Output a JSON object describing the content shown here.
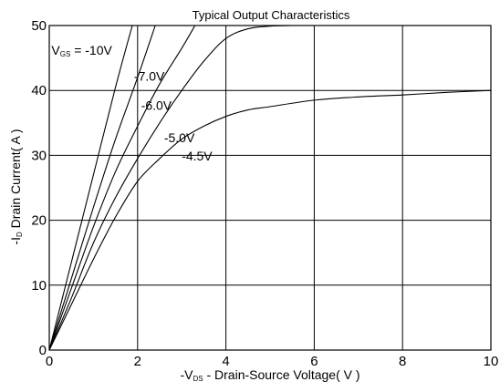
{
  "chart_data": {
    "type": "line",
    "title": "Typical Output Characteristics",
    "xlabel": {
      "prefix": "-V",
      "sub": "DS",
      "suffix": " - Drain-Source Voltage( V )"
    },
    "ylabel": {
      "prefix": "-I",
      "sub": "D",
      "suffix": " Drain Current( A )"
    },
    "xlim": [
      0,
      10
    ],
    "ylim": [
      0,
      50
    ],
    "xticks": [
      "0",
      "2",
      "4",
      "6",
      "8",
      "10"
    ],
    "yticks": [
      "0",
      "10",
      "20",
      "30",
      "40",
      "50"
    ],
    "grid": true,
    "series": [
      {
        "name": "-10V",
        "label_parts": {
          "prefix": "V",
          "sub": "GS",
          "suffix": " = -10V"
        },
        "points": [
          [
            0,
            0
          ],
          [
            0.5,
            13.5
          ],
          [
            1.0,
            27.0
          ],
          [
            1.5,
            40.5
          ],
          [
            1.88,
            50
          ]
        ]
      },
      {
        "name": "-7.0V",
        "points": [
          [
            0,
            0
          ],
          [
            0.5,
            11.0
          ],
          [
            1.0,
            22.0
          ],
          [
            1.5,
            32.5
          ],
          [
            2.0,
            42.0
          ],
          [
            2.4,
            50
          ]
        ]
      },
      {
        "name": "-6.0V",
        "points": [
          [
            0,
            0
          ],
          [
            0.5,
            9.5
          ],
          [
            1.0,
            19.0
          ],
          [
            1.5,
            27.5
          ],
          [
            2.0,
            34.5
          ],
          [
            2.5,
            41.0
          ],
          [
            3.0,
            46.5
          ],
          [
            3.3,
            50
          ]
        ]
      },
      {
        "name": "-5.0V",
        "points": [
          [
            0,
            0
          ],
          [
            0.5,
            8.0
          ],
          [
            1.0,
            16.5
          ],
          [
            1.5,
            23.5
          ],
          [
            2.0,
            29.5
          ],
          [
            2.5,
            35.0
          ],
          [
            3.0,
            40.0
          ],
          [
            3.5,
            44.5
          ],
          [
            4.0,
            48.0
          ],
          [
            4.5,
            49.5
          ],
          [
            5.0,
            49.9
          ],
          [
            5.5,
            50
          ]
        ]
      },
      {
        "name": "-4.5V",
        "points": [
          [
            0,
            0
          ],
          [
            0.5,
            7.0
          ],
          [
            1.0,
            14.0
          ],
          [
            1.5,
            20.5
          ],
          [
            2.0,
            26.0
          ],
          [
            2.5,
            29.5
          ],
          [
            3.0,
            32.5
          ],
          [
            3.5,
            34.5
          ],
          [
            4.0,
            36.0
          ],
          [
            4.5,
            37.0
          ],
          [
            5.0,
            37.5
          ],
          [
            6.0,
            38.5
          ],
          [
            7.0,
            39.0
          ],
          [
            8.0,
            39.3
          ],
          [
            9.0,
            39.7
          ],
          [
            10.0,
            40.0
          ]
        ]
      }
    ],
    "curve_label_anchors": [
      [
        0.05,
        45.5
      ],
      [
        1.92,
        41.5
      ],
      [
        2.08,
        37.0
      ],
      [
        2.6,
        32.0
      ],
      [
        3.0,
        29.2
      ]
    ]
  }
}
